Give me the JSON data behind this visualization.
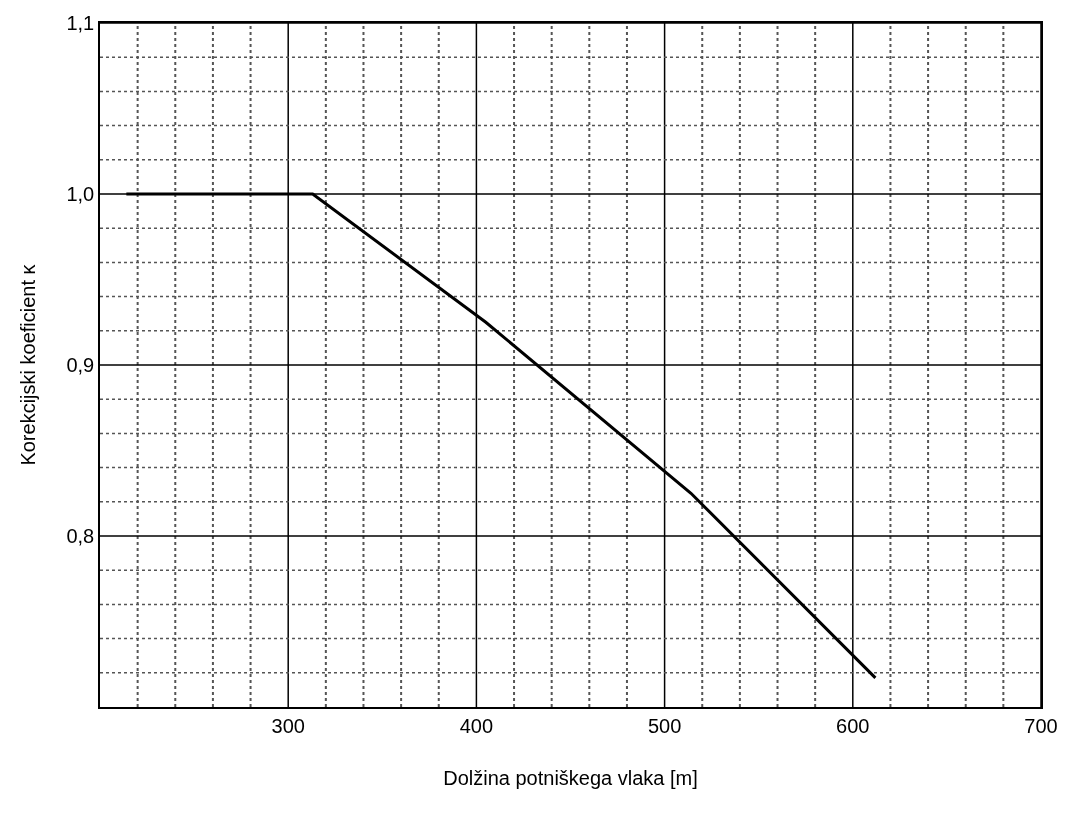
{
  "chart_data": {
    "type": "line",
    "xlabel": "Dolžina potniškega vlaka [m]",
    "ylabel": "Korekcijski koeficient κ",
    "x": [
      214,
      313,
      405,
      514,
      612
    ],
    "series": [
      {
        "color": "#000000",
        "values": [
          1.0,
          1.0,
          0.925,
          0.825,
          0.717
        ]
      }
    ],
    "xlim": [
      200,
      700
    ],
    "ylim": [
      0.7,
      1.1
    ],
    "xticks": [
      {
        "value": 220,
        "label": null
      },
      {
        "value": 240,
        "label": null
      },
      {
        "value": 260,
        "label": null
      },
      {
        "value": 280,
        "label": null
      },
      300,
      {
        "value": 320,
        "label": null
      },
      {
        "value": 340,
        "label": null
      },
      {
        "value": 360,
        "label": null
      },
      {
        "value": 380,
        "label": null
      },
      400,
      {
        "value": 420,
        "label": null
      },
      {
        "value": 440,
        "label": null
      },
      {
        "value": 460,
        "label": null
      },
      {
        "value": 480,
        "label": null
      },
      500,
      {
        "value": 520,
        "label": null
      },
      {
        "value": 540,
        "label": null
      },
      {
        "value": 560,
        "label": null
      },
      {
        "value": 580,
        "label": null
      },
      600,
      {
        "value": 620,
        "label": null
      },
      {
        "value": 640,
        "label": null
      },
      {
        "value": 660,
        "label": null
      },
      {
        "value": 680,
        "label": null
      },
      700
    ],
    "yticks": [
      {
        "value": 0.72,
        "label": null
      },
      {
        "value": 0.74,
        "label": null
      },
      {
        "value": 0.76,
        "label": null
      },
      {
        "value": 0.78,
        "label": null
      },
      {
        "value": 0.8,
        "label": "0,8"
      },
      {
        "value": 0.82,
        "label": null
      },
      {
        "value": 0.84,
        "label": null
      },
      {
        "value": 0.86,
        "label": null
      },
      {
        "value": 0.88,
        "label": null
      },
      {
        "value": 0.9,
        "label": "0,9"
      },
      {
        "value": 0.92,
        "label": null
      },
      {
        "value": 0.94,
        "label": null
      },
      {
        "value": 0.96,
        "label": null
      },
      {
        "value": 0.98,
        "label": null
      },
      {
        "value": 1.0,
        "label": "1,0"
      },
      {
        "value": 1.02,
        "label": null
      },
      {
        "value": 1.04,
        "label": null
      },
      {
        "value": 1.06,
        "label": null
      },
      {
        "value": 1.08,
        "label": null
      },
      {
        "value": 1.1,
        "label": "1,1"
      }
    ],
    "grid": true,
    "marker": "none",
    "line_style": "solid"
  }
}
